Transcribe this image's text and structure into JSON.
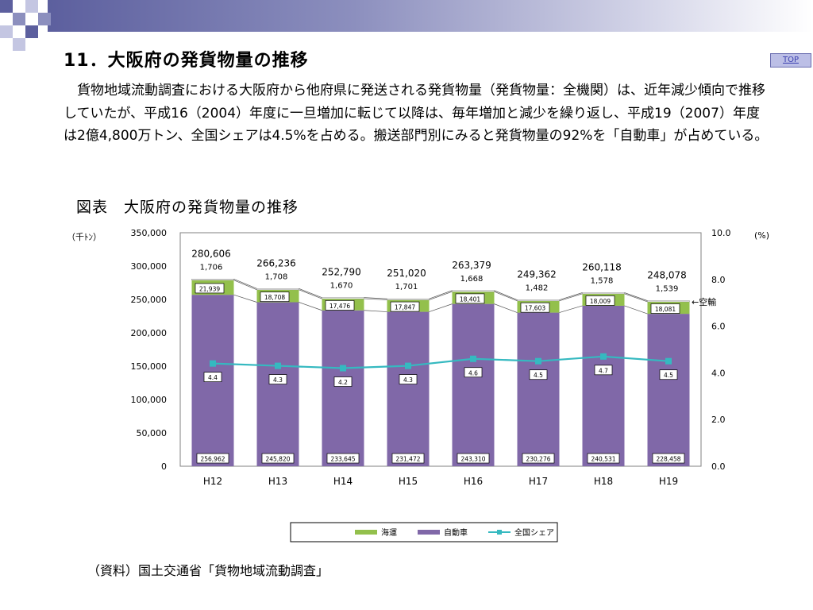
{
  "header": {
    "title": "11．大阪府の発貨物量の推移",
    "top_button": "TOP"
  },
  "body_text": "貨物地域流動調査における大阪府から他府県に発送される発貨物量（発貨物量：全機関）は、近年減少傾向で推移していたが、平成16（2004）年度に一旦増加に転じて以降は、毎年増加と減少を繰り返し、平成19（2007）年度は2億4,800万トン、全国シェアは4.5%を占める。搬送部門別にみると発貨物量の92%を「自動車」が占めている。",
  "figure": {
    "title": "図表　大阪府の発貨物量の推移",
    "unit_left": "（千ﾄﾝ）",
    "unit_right": "(%)",
    "air_label": "←空輸"
  },
  "source": "（資料）国土交通省「貨物地域流動調査」",
  "colors": {
    "truck": "#8068a8",
    "sea": "#93c04c",
    "share_line": "#35b9c0",
    "header_bar": "#5c5f9e"
  },
  "chart_data": {
    "type": "bar",
    "stacked": true,
    "categories": [
      "H12",
      "H13",
      "H14",
      "H15",
      "H16",
      "H17",
      "H18",
      "H19"
    ],
    "series": [
      {
        "name": "自動車",
        "values": [
          256962,
          245820,
          233645,
          231472,
          243310,
          230276,
          240531,
          228458
        ]
      },
      {
        "name": "海運",
        "values": [
          21939,
          18708,
          17476,
          17847,
          18401,
          17603,
          18009,
          18081
        ]
      },
      {
        "name": "",
        "values": [
          1706,
          1708,
          1670,
          1701,
          1668,
          1482,
          1578,
          1539
        ]
      }
    ],
    "totals": [
      280606,
      266236,
      252790,
      251020,
      263379,
      249362,
      260118,
      248078
    ],
    "total_labels": [
      "280,606",
      "266,236",
      "252,790",
      "251,020",
      "263,379",
      "249,362",
      "260,118",
      "248,078"
    ],
    "truck_labels": [
      "256,962",
      "245,820",
      "233,645",
      "231,472",
      "243,310",
      "230,276",
      "240,531",
      "228,458"
    ],
    "sea_labels": [
      "21,939",
      "18,708",
      "17,476",
      "17,847",
      "18,401",
      "17,603",
      "18,009",
      "18,081"
    ],
    "air_labels": [
      "1,706",
      "1,708",
      "1,670",
      "1,701",
      "1,668",
      "1,482",
      "1,578",
      "1,539"
    ],
    "line_series": {
      "name": "全国シェア",
      "values": [
        4.4,
        4.3,
        4.2,
        4.3,
        4.6,
        4.5,
        4.7,
        4.5
      ]
    },
    "y_left": {
      "range": [
        0,
        350000
      ],
      "ticks": [
        "0",
        "50,000",
        "100,000",
        "150,000",
        "200,000",
        "250,000",
        "300,000",
        "350,000"
      ]
    },
    "y_right": {
      "range": [
        0,
        10
      ],
      "ticks": [
        "0.0",
        "2.0",
        "4.0",
        "6.0",
        "8.0",
        "10.0"
      ]
    },
    "legend": [
      "海運",
      "自動車",
      "全国シェア"
    ],
    "legend_position": "bottom"
  }
}
